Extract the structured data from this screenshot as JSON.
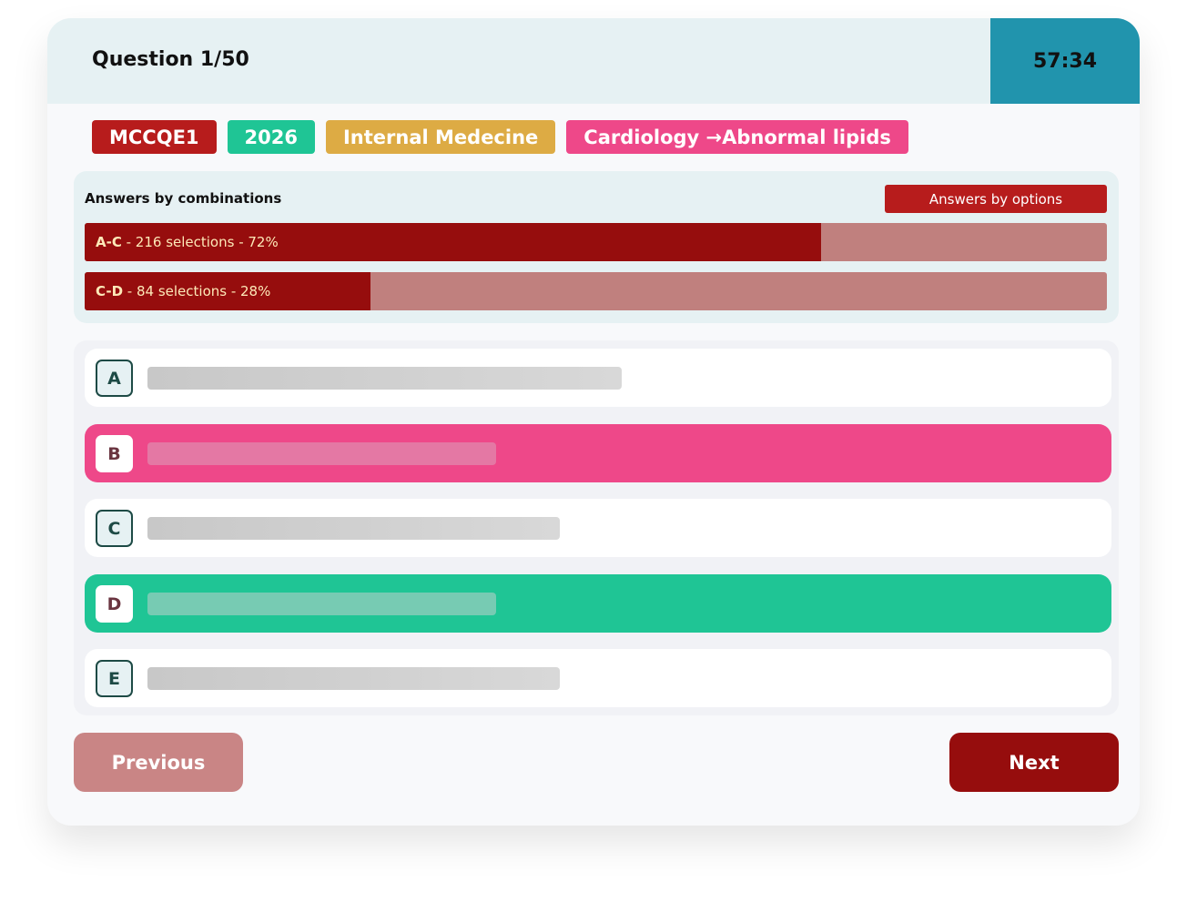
{
  "header": {
    "question": "Question 1/50",
    "timer": "57:34"
  },
  "tags": [
    {
      "label": "MCCQE1",
      "color": "#b71c1c"
    },
    {
      "label": "2026",
      "color": "#1fc595"
    },
    {
      "label": "Internal Medecine",
      "color": "#ddab44"
    },
    {
      "label": "Cardiology →Abnormal lipids",
      "color": "#ee4889"
    }
  ],
  "stats": {
    "title": "Answers by combinations",
    "toggle_label": "Answers by options",
    "rows": [
      {
        "combo": "A-C",
        "text": " - 216 selections - 72%",
        "percent": 72
      },
      {
        "combo": "C-D",
        "text": " - 84 selections - 28%",
        "percent": 28
      }
    ]
  },
  "options": [
    {
      "letter": "A",
      "state": "neutral"
    },
    {
      "letter": "B",
      "state": "incorrect"
    },
    {
      "letter": "C",
      "state": "neutral"
    },
    {
      "letter": "D",
      "state": "correct"
    },
    {
      "letter": "E",
      "state": "neutral"
    }
  ],
  "nav": {
    "previous": "Previous",
    "next": "Next"
  }
}
